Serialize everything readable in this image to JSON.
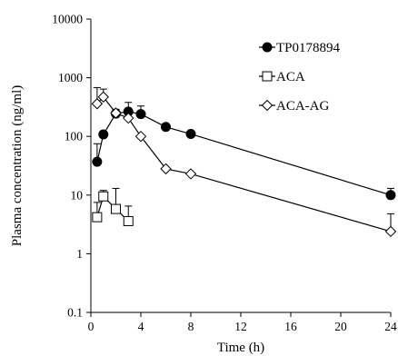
{
  "chart_data": {
    "type": "scatter",
    "xlabel": "Time (h)",
    "ylabel": "Plasma concentration (ng/ml)",
    "xlim": [
      0,
      24
    ],
    "ylim": [
      0.1,
      10000
    ],
    "yscale": "log",
    "x_ticks": [
      "0",
      "4",
      "8",
      "12",
      "16",
      "20",
      "24"
    ],
    "y_ticks": [
      "0.1",
      "1",
      "10",
      "100",
      "1000",
      "10000"
    ],
    "legend_position": "top-right",
    "grid": false,
    "series": [
      {
        "name": "TP0178894",
        "marker": "filled-circle",
        "line": true,
        "color": "#000000",
        "x": [
          0.5,
          1,
          2,
          3,
          4,
          6,
          8,
          24
        ],
        "y": [
          37,
          108,
          245,
          265,
          240,
          145,
          110,
          10
        ],
        "err_high": [
          75,
          null,
          290,
          380,
          330,
          null,
          null,
          13
        ]
      },
      {
        "name": "ACA",
        "marker": "open-square",
        "line": true,
        "color": "#000000",
        "x": [
          0.5,
          1,
          2,
          3
        ],
        "y": [
          4.2,
          9.5,
          5.8,
          3.6
        ],
        "err_high": [
          7.5,
          12,
          13,
          6.5
        ]
      },
      {
        "name": "ACA-AG",
        "marker": "open-diamond",
        "line": true,
        "color": "#000000",
        "x": [
          0.5,
          1,
          2,
          3,
          4,
          6,
          8,
          24
        ],
        "y": [
          360,
          470,
          250,
          205,
          100,
          28,
          23,
          2.4
        ],
        "err_high": [
          680,
          640,
          null,
          null,
          null,
          null,
          null,
          4.8
        ]
      }
    ]
  }
}
